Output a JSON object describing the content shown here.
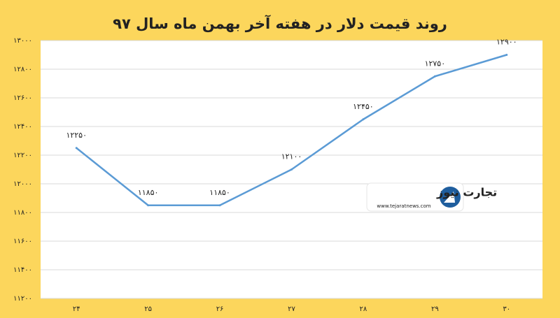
{
  "chart_data": {
    "type": "line",
    "title": "روند قیمت دلار در هفته آخر بهمن ماه سال ۹۷",
    "categories": [
      "۲۴",
      "۲۵",
      "۲۶",
      "۲۷",
      "۲۸",
      "۲۹",
      "۳۰"
    ],
    "values": [
      12250,
      11850,
      11850,
      12100,
      12450,
      12750,
      12900
    ],
    "value_labels": [
      "۱۲۲۵۰",
      "۱۱۸۵۰",
      "۱۱۸۵۰",
      "۱۲۱۰۰",
      "۱۲۴۵۰",
      "۱۲۷۵۰",
      "۱۲۹۰۰"
    ],
    "color": "#5b9bd5",
    "ylim": [
      11200,
      13000
    ],
    "yticks": [
      {
        "value": 11200,
        "label": "۱۱۲۰۰"
      },
      {
        "value": 11400,
        "label": "۱۱۴۰۰"
      },
      {
        "value": 11600,
        "label": "۱۱۶۰۰"
      },
      {
        "value": 11800,
        "label": "۱۱۸۰۰"
      },
      {
        "value": 12000,
        "label": "۱۲۰۰۰"
      },
      {
        "value": 12200,
        "label": "۱۲۲۰۰"
      },
      {
        "value": 12400,
        "label": "۱۲۴۰۰"
      },
      {
        "value": 12600,
        "label": "۱۲۶۰۰"
      },
      {
        "value": 12800,
        "label": "۱۲۸۰۰"
      },
      {
        "value": 13000,
        "label": "۱۳۰۰۰"
      }
    ],
    "grid": true,
    "watermark": {
      "name": "تجارت نیوز",
      "url": "www.tejaratnews.com"
    }
  }
}
